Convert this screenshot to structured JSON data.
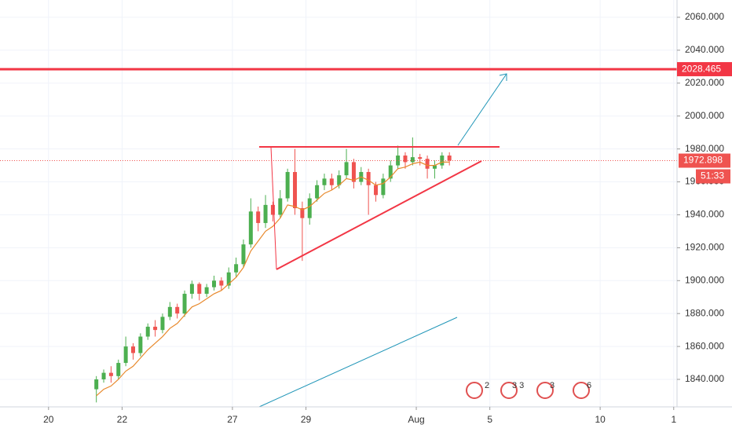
{
  "chart_data": {
    "type": "candlestick",
    "x": [
      1.3,
      1.5,
      1.7,
      1.9,
      2.1,
      2.3,
      2.5,
      2.7,
      2.9,
      3.1,
      3.3,
      3.5,
      3.7,
      3.9,
      4.1,
      4.3,
      4.5,
      4.7,
      4.9,
      5.1,
      5.3,
      5.5,
      5.7,
      5.9,
      6.1,
      6.3,
      6.5,
      6.7,
      6.9,
      7.1,
      7.3,
      7.5,
      7.7,
      7.9,
      8.1,
      8.3,
      8.5,
      8.7,
      8.9,
      9.1,
      9.3,
      9.5,
      9.7,
      9.9,
      10.1,
      10.3,
      10.5,
      10.7,
      10.9
    ],
    "open": [
      1834,
      1840,
      1844,
      1842,
      1850,
      1860,
      1856,
      1866,
      1872,
      1870,
      1878,
      1884,
      1880,
      1892,
      1898,
      1892,
      1896,
      1900,
      1897,
      1905,
      1910,
      1922,
      1942,
      1935,
      1946,
      1940,
      1950,
      1966,
      1944,
      1938,
      1950,
      1958,
      1962,
      1958,
      1964,
      1972,
      1960,
      1966,
      1958,
      1952,
      1962,
      1970,
      1976,
      1972,
      1975,
      1974,
      1968,
      1970,
      1976
    ],
    "high": [
      1842,
      1846,
      1848,
      1852,
      1866,
      1862,
      1868,
      1874,
      1876,
      1880,
      1887,
      1886,
      1894,
      1900,
      1899,
      1898,
      1903,
      1902,
      1908,
      1914,
      1925,
      1950,
      1945,
      1952,
      1948,
      1955,
      1968,
      1980,
      1948,
      1953,
      1961,
      1965,
      1965,
      1967,
      1980,
      1974,
      1969,
      1968,
      1960,
      1965,
      1973,
      1982,
      1978,
      1987,
      1977,
      1976,
      1973,
      1978,
      1978
    ],
    "low": [
      1826,
      1838,
      1838,
      1840,
      1848,
      1852,
      1854,
      1864,
      1866,
      1868,
      1876,
      1877,
      1878,
      1889,
      1888,
      1890,
      1894,
      1894,
      1895,
      1902,
      1908,
      1920,
      1930,
      1932,
      1936,
      1938,
      1948,
      1940,
      1912,
      1934,
      1948,
      1955,
      1955,
      1956,
      1962,
      1956,
      1958,
      1940,
      1948,
      1950,
      1960,
      1968,
      1968,
      1970,
      1970,
      1962,
      1962,
      1968,
      1970
    ],
    "close": [
      1840,
      1844,
      1842,
      1850,
      1860,
      1856,
      1866,
      1872,
      1870,
      1878,
      1884,
      1880,
      1892,
      1898,
      1892,
      1896,
      1900,
      1897,
      1905,
      1910,
      1922,
      1942,
      1935,
      1946,
      1940,
      1950,
      1966,
      1944,
      1938,
      1950,
      1958,
      1962,
      1958,
      1964,
      1972,
      1960,
      1966,
      1958,
      1952,
      1962,
      1970,
      1976,
      1972,
      1975,
      1974,
      1968,
      1970,
      1976,
      1972.898
    ],
    "ma": [
      1830,
      1834,
      1836,
      1840,
      1845,
      1848,
      1853,
      1858,
      1862,
      1866,
      1871,
      1874,
      1879,
      1884,
      1886,
      1889,
      1892,
      1894,
      1898,
      1902,
      1908,
      1918,
      1924,
      1930,
      1933,
      1938,
      1946,
      1945,
      1943,
      1945,
      1949,
      1953,
      1955,
      1958,
      1962,
      1961,
      1963,
      1961,
      1958,
      1959,
      1963,
      1968,
      1969,
      1971,
      1972,
      1970,
      1970,
      1972,
      1972
    ],
    "up_color": "#4caf50",
    "down_color": "#ef5350",
    "ma_color": "#e8892c",
    "level_color": "#f23645",
    "level": 2028.465,
    "last_price": 1972.898,
    "countdown": "51:33",
    "events": [
      "2",
      "3 3",
      "3",
      "6"
    ],
    "xlim": [
      -1.32,
      17.09
    ],
    "ylim": [
      1823.3,
      2070.5
    ],
    "xticks": [
      {
        "value": 0,
        "label": "20"
      },
      {
        "value": 2,
        "label": "22"
      },
      {
        "value": 5,
        "label": "27"
      },
      {
        "value": 7,
        "label": "29"
      },
      {
        "value": 10,
        "label": "Aug"
      },
      {
        "value": 12,
        "label": "5"
      },
      {
        "value": 15,
        "label": "10"
      },
      {
        "value": 17,
        "label": "1"
      }
    ],
    "yticks": [
      {
        "value": 1840,
        "label": "1840.000"
      },
      {
        "value": 1860,
        "label": "1860.000"
      },
      {
        "value": 1880,
        "label": "1880.000"
      },
      {
        "value": 1900,
        "label": "1900.000"
      },
      {
        "value": 1920,
        "label": "1920.000"
      },
      {
        "value": 1940,
        "label": "1940.000"
      },
      {
        "value": 1960,
        "label": "1960.000"
      },
      {
        "value": 1980,
        "label": "1980.000"
      },
      {
        "value": 2000,
        "label": "2000.000"
      },
      {
        "value": 2020,
        "label": "2020.000"
      },
      {
        "value": 2040,
        "label": "2040.000"
      },
      {
        "value": 2060,
        "label": "2060.000"
      }
    ],
    "grid": true
  }
}
